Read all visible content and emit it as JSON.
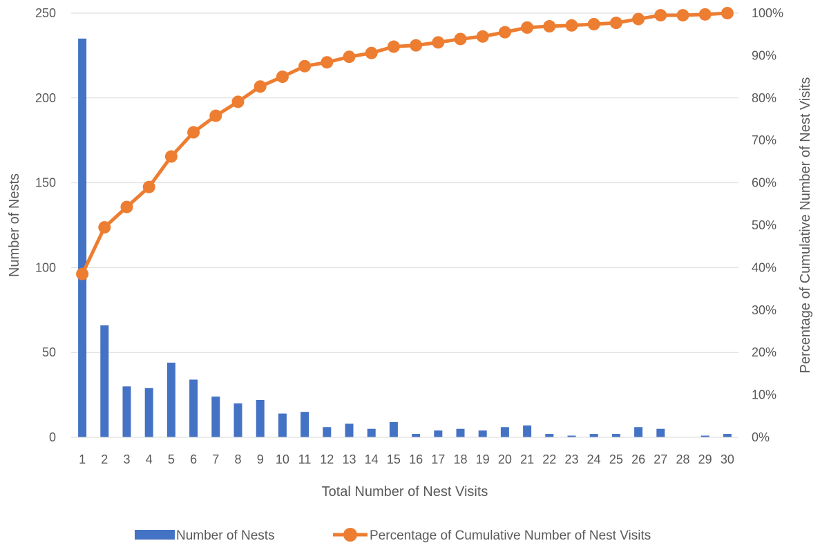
{
  "chart_data": {
    "type": "bar",
    "categories": [
      "1",
      "2",
      "3",
      "4",
      "5",
      "6",
      "7",
      "8",
      "9",
      "10",
      "11",
      "12",
      "13",
      "14",
      "15",
      "16",
      "17",
      "18",
      "19",
      "20",
      "21",
      "22",
      "23",
      "24",
      "25",
      "26",
      "27",
      "28",
      "29",
      "30"
    ],
    "series": [
      {
        "name": "Number of Nests",
        "type": "bar",
        "axis": "left",
        "color": "#4472C4",
        "values": [
          235,
          66,
          30,
          29,
          44,
          34,
          24,
          20,
          22,
          14,
          15,
          6,
          8,
          5,
          9,
          2,
          4,
          5,
          4,
          6,
          7,
          2,
          1,
          2,
          2,
          6,
          5,
          0,
          1,
          2
        ]
      },
      {
        "name": "Percentage of Cumulative Number of Nest Visits",
        "type": "line",
        "axis": "right",
        "color": "#ED7D31",
        "marker": "circle",
        "values": [
          38.5,
          49.5,
          54.3,
          59.0,
          66.2,
          71.9,
          75.8,
          79.1,
          82.7,
          85.0,
          87.5,
          88.4,
          89.7,
          90.6,
          92.1,
          92.4,
          93.1,
          93.9,
          94.5,
          95.5,
          96.6,
          96.9,
          97.1,
          97.4,
          97.7,
          98.6,
          99.5,
          99.5,
          99.7,
          100.0
        ]
      }
    ],
    "xlabel": "Total Number of Nest Visits",
    "ylabel": "Number of Nests",
    "y2label": "Percentage of Cumulative Number of Nest Visits",
    "ylim": [
      0,
      250
    ],
    "yticks": [
      "0",
      "50",
      "100",
      "150",
      "200",
      "250"
    ],
    "y2lim": [
      0,
      100
    ],
    "y2ticks": [
      "0%",
      "10%",
      "20%",
      "30%",
      "40%",
      "50%",
      "60%",
      "70%",
      "80%",
      "90%",
      "100%"
    ],
    "grid": true,
    "legend_position": "bottom"
  }
}
